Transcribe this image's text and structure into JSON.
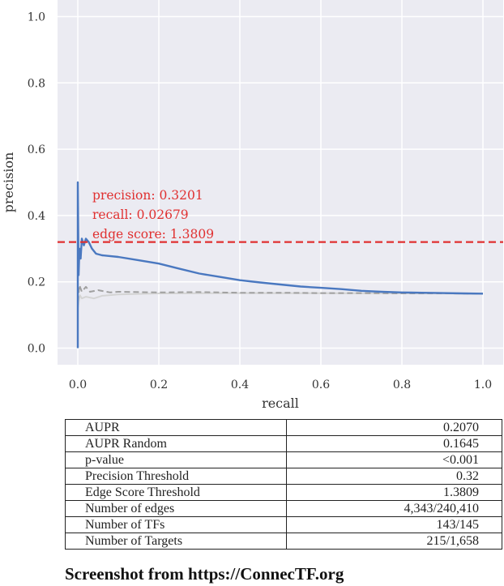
{
  "chart_data": {
    "type": "line",
    "xlabel": "recall",
    "ylabel": "precision",
    "xlim": [
      -0.05,
      1.05
    ],
    "ylim": [
      -0.05,
      1.05
    ],
    "x_ticks": [
      0.0,
      0.2,
      0.4,
      0.6,
      0.8,
      1.0
    ],
    "x_tick_labels": [
      "0.0",
      "0.2",
      "0.4",
      "0.6",
      "0.8",
      "1.0"
    ],
    "y_ticks": [
      0.0,
      0.2,
      0.4,
      0.6,
      0.8,
      1.0
    ],
    "y_tick_labels": [
      "0.0",
      "0.2",
      "0.4",
      "0.6",
      "0.8",
      "1.0"
    ],
    "grid": true,
    "series": [
      {
        "color": "#4a78c0",
        "style": "solid",
        "points": [
          [
            0.0,
            0.0
          ],
          [
            0.0,
            0.5
          ],
          [
            0.002,
            0.22
          ],
          [
            0.004,
            0.3
          ],
          [
            0.007,
            0.27
          ],
          [
            0.01,
            0.33
          ],
          [
            0.015,
            0.31
          ],
          [
            0.02,
            0.33
          ],
          [
            0.027,
            0.3201
          ],
          [
            0.035,
            0.3
          ],
          [
            0.045,
            0.285
          ],
          [
            0.06,
            0.28
          ],
          [
            0.1,
            0.275
          ],
          [
            0.15,
            0.265
          ],
          [
            0.2,
            0.255
          ],
          [
            0.25,
            0.24
          ],
          [
            0.3,
            0.225
          ],
          [
            0.35,
            0.215
          ],
          [
            0.4,
            0.205
          ],
          [
            0.45,
            0.198
          ],
          [
            0.5,
            0.192
          ],
          [
            0.55,
            0.186
          ],
          [
            0.6,
            0.182
          ],
          [
            0.65,
            0.178
          ],
          [
            0.7,
            0.173
          ],
          [
            0.75,
            0.17
          ],
          [
            0.8,
            0.168
          ],
          [
            0.85,
            0.167
          ],
          [
            0.9,
            0.166
          ],
          [
            0.95,
            0.165
          ],
          [
            1.0,
            0.1645
          ]
        ]
      },
      {
        "color": "#a0a0a0",
        "style": "dashed",
        "points": [
          [
            0.0,
            0.14
          ],
          [
            0.004,
            0.19
          ],
          [
            0.01,
            0.17
          ],
          [
            0.02,
            0.185
          ],
          [
            0.03,
            0.17
          ],
          [
            0.05,
            0.175
          ],
          [
            0.08,
            0.168
          ],
          [
            0.1,
            0.17
          ],
          [
            0.2,
            0.168
          ],
          [
            0.3,
            0.169
          ],
          [
            0.4,
            0.167
          ],
          [
            0.5,
            0.167
          ],
          [
            0.6,
            0.166
          ],
          [
            0.7,
            0.166
          ],
          [
            0.8,
            0.165
          ],
          [
            0.9,
            0.165
          ],
          [
            1.0,
            0.1645
          ]
        ]
      },
      {
        "color": "#d4d4d4",
        "style": "solid",
        "points": [
          [
            0.0,
            0.12
          ],
          [
            0.005,
            0.16
          ],
          [
            0.01,
            0.15
          ],
          [
            0.02,
            0.155
          ],
          [
            0.04,
            0.15
          ],
          [
            0.06,
            0.158
          ],
          [
            0.1,
            0.162
          ],
          [
            0.2,
            0.165
          ],
          [
            0.4,
            0.166
          ],
          [
            0.6,
            0.1655
          ],
          [
            0.8,
            0.165
          ],
          [
            1.0,
            0.1645
          ]
        ]
      }
    ],
    "threshold": {
      "y": 0.3201,
      "color": "#e03030",
      "style": "dashed"
    },
    "annotation": {
      "color": "#e03030",
      "lines": [
        "precision: 0.3201",
        "recall: 0.02679",
        "edge score: 1.3809"
      ]
    }
  },
  "stats_table": [
    {
      "label": "AUPR",
      "value": "0.2070"
    },
    {
      "label": "AUPR Random",
      "value": "0.1645"
    },
    {
      "label": "p-value",
      "value": "<0.001"
    },
    {
      "label": "Precision Threshold",
      "value": "0.32"
    },
    {
      "label": "Edge Score Threshold",
      "value": "1.3809"
    },
    {
      "label": "Number of edges",
      "value": "4,343/240,410"
    },
    {
      "label": "Number of TFs",
      "value": "143/145"
    },
    {
      "label": "Number of Targets",
      "value": "215/1,658"
    }
  ],
  "footer_text": "Screenshot from https://ConnecTF.org"
}
